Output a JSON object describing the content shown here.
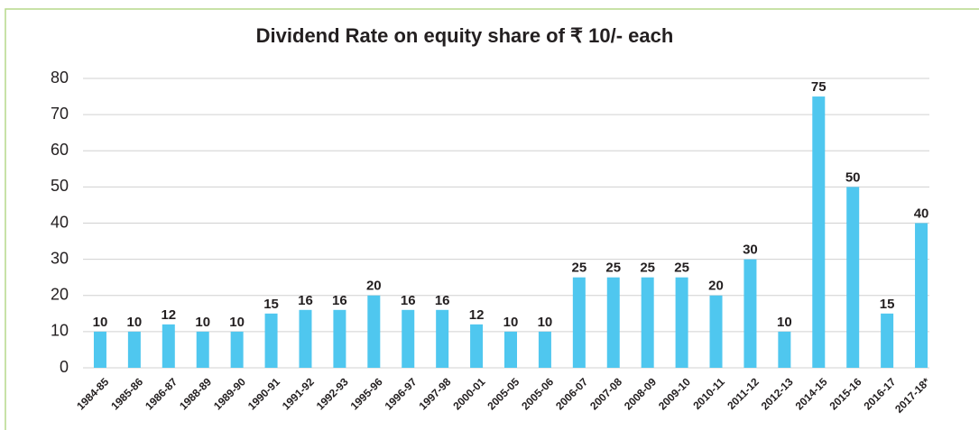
{
  "chart_data": {
    "type": "bar",
    "title": "Dividend Rate on equity share of ₹ 10/- each",
    "categories": [
      "1984-85",
      "1985-86",
      "1986-87",
      "1988-89",
      "1989-90",
      "1990-91",
      "1991-92",
      "1992-93",
      "1995-96",
      "1996-97",
      "1997-98",
      "2000-01",
      "2005-05",
      "2005-06",
      "2006-07",
      "2007-08",
      "2008-09",
      "2009-10",
      "2010-11",
      "2011-12",
      "2012-13",
      "2014-15",
      "2015-16",
      "2016-17",
      "2017-18*"
    ],
    "values": [
      10,
      10,
      12,
      10,
      10,
      15,
      16,
      16,
      20,
      16,
      16,
      12,
      10,
      10,
      25,
      25,
      25,
      25,
      20,
      30,
      10,
      75,
      50,
      15,
      40
    ],
    "color": "#4fc7ef",
    "ylim": [
      0,
      80
    ],
    "yticks": [
      0,
      10,
      20,
      30,
      40,
      50,
      60,
      70,
      80
    ],
    "grid": true
  }
}
